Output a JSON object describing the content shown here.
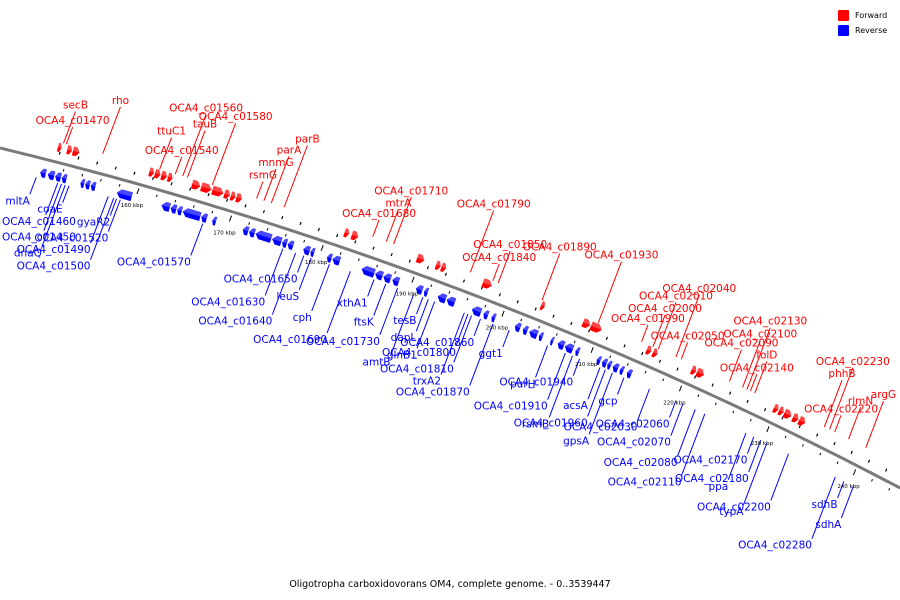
{
  "caption": "Oligotropha carboxidovorans OM4, complete genome. - 0..3539447",
  "legend": {
    "forward_label": "Forward",
    "reverse_label": "Reverse",
    "forward_color": "#ff0000",
    "reverse_color": "#0000ff"
  },
  "colors": {
    "forward": "#ff0000",
    "reverse": "#0000ff",
    "backbone": "#7a7a7a",
    "leader": "#0000ff",
    "leader_forward": "#ff0000"
  },
  "genome": {
    "name": "Oligotropha carboxidovorans OM4",
    "length_bp": 3539447,
    "view_start_kbp": 150,
    "view_end_kbp": 250
  },
  "ticks": [
    {
      "kbp": 160,
      "label": "160 kbp"
    },
    {
      "kbp": 170,
      "label": "170 kbp"
    },
    {
      "kbp": 180,
      "label": "180 kbp"
    },
    {
      "kbp": 190,
      "label": "190 kbp"
    },
    {
      "kbp": 200,
      "label": "200 kbp"
    },
    {
      "kbp": 210,
      "label": "210 kbp"
    },
    {
      "kbp": 220,
      "label": "220 kbp"
    },
    {
      "kbp": 230,
      "label": "230 kbp"
    },
    {
      "kbp": 240,
      "label": "240 kbp"
    }
  ],
  "forward_labels": [
    {
      "label": "OCA4_c01470",
      "kbp": 151.3
    },
    {
      "label": "secB",
      "kbp": 151.0
    },
    {
      "label": "rho",
      "kbp": 155.2
    },
    {
      "label": "OCA4_c01560",
      "kbp": 163.8
    },
    {
      "label": "OCA4_c01540",
      "kbp": 163.0
    },
    {
      "label": "ttuC1",
      "kbp": 161.3
    },
    {
      "label": "tauB",
      "kbp": 164.3
    },
    {
      "label": "OCA4_c01580",
      "kbp": 167.0
    },
    {
      "label": "rsmG",
      "kbp": 171.8
    },
    {
      "label": "mnmG",
      "kbp": 172.6
    },
    {
      "label": "parA",
      "kbp": 173.4
    },
    {
      "label": "parB",
      "kbp": 174.8
    },
    {
      "label": "OCA4_c01680",
      "kbp": 184.5
    },
    {
      "label": "mtrA",
      "kbp": 186.0
    },
    {
      "label": "OCA4_c01710",
      "kbp": 186.8
    },
    {
      "label": "OCA4_c01790",
      "kbp": 195.3
    },
    {
      "label": "OCA4_c01840",
      "kbp": 197.8
    },
    {
      "label": "OCA4_c01850",
      "kbp": 198.4
    },
    {
      "label": "OCA4_c01890",
      "kbp": 203.3
    },
    {
      "label": "OCA4_c01930",
      "kbp": 209.6
    },
    {
      "label": "OCA4_c01990",
      "kbp": 214.5
    },
    {
      "label": "OCA4_c02000",
      "kbp": 215.8
    },
    {
      "label": "OCA4_c02010",
      "kbp": 216.4
    },
    {
      "label": "OCA4_c02040",
      "kbp": 218.4
    },
    {
      "label": "OCA4_c02050",
      "kbp": 219.0
    },
    {
      "label": "OCA4_c02090",
      "kbp": 224.5
    },
    {
      "label": "OCA4_c02100",
      "kbp": 226.0
    },
    {
      "label": "OCA4_c02130",
      "kbp": 226.5
    },
    {
      "label": "OCA4_c02140",
      "kbp": 226.9
    },
    {
      "label": "folD",
      "kbp": 227.4
    },
    {
      "label": "phhB",
      "kbp": 235.4
    },
    {
      "label": "OCA4_c02230",
      "kbp": 236.0
    },
    {
      "label": "OCA4_c02220",
      "kbp": 236.6
    },
    {
      "label": "rlmN",
      "kbp": 238.2
    },
    {
      "label": "argG",
      "kbp": 240.2
    }
  ],
  "reverse_labels": [
    {
      "label": "mltA",
      "kbp": 149.6
    },
    {
      "label": "OCA4_c01460",
      "kbp": 151.9
    },
    {
      "label": "OCA4_c01450",
      "kbp": 152.3
    },
    {
      "label": "dnaQ",
      "kbp": 152.7
    },
    {
      "label": "coaE",
      "kbp": 153.1
    },
    {
      "label": "OCA4_c01520",
      "kbp": 158.6
    },
    {
      "label": "OCA4_c01490",
      "kbp": 157.3
    },
    {
      "label": "OCA4_c01500",
      "kbp": 157.9
    },
    {
      "label": "gyaR2",
      "kbp": 158.2
    },
    {
      "label": "OCA4_c01570",
      "kbp": 167.5
    },
    {
      "label": "OCA4_c01630",
      "kbp": 176.2
    },
    {
      "label": "OCA4_c01640",
      "kbp": 177.6
    },
    {
      "label": "OCA4_c01650",
      "kbp": 178.5
    },
    {
      "label": "leuS",
      "kbp": 179.3
    },
    {
      "label": "cph",
      "kbp": 181.3
    },
    {
      "label": "OCA4_c01690",
      "kbp": 183.6
    },
    {
      "label": "xthA1",
      "kbp": 186.2
    },
    {
      "label": "ftsK",
      "kbp": 187.5
    },
    {
      "label": "OCA4_c01730",
      "kbp": 188.8
    },
    {
      "label": "amtB",
      "kbp": 190.6
    },
    {
      "label": "tesB",
      "kbp": 191.6
    },
    {
      "label": "dapL",
      "kbp": 192.2
    },
    {
      "label": "glnB1",
      "kbp": 192.9
    },
    {
      "label": "trxA2",
      "kbp": 196.2
    },
    {
      "label": "OCA4_c01860",
      "kbp": 198.0
    },
    {
      "label": "OCA4_c01800",
      "kbp": 196.6
    },
    {
      "label": "OCA4_c01810",
      "kbp": 197.0
    },
    {
      "label": "OCA4_c01870",
      "kbp": 199.4
    },
    {
      "label": "ggt1",
      "kbp": 201.2
    },
    {
      "label": "purH",
      "kbp": 205.5
    },
    {
      "label": "OCA4_c01910",
      "kbp": 207.5
    },
    {
      "label": "rsmB",
      "kbp": 208.3
    },
    {
      "label": "OCA4_c01940",
      "kbp": 209.1
    },
    {
      "label": "acsA",
      "kbp": 211.4
    },
    {
      "label": "OCA4_c01960",
      "kbp": 212.0
    },
    {
      "label": "gpsA",
      "kbp": 212.8
    },
    {
      "label": "gcp",
      "kbp": 214.1
    },
    {
      "label": "OCA4_c02030",
      "kbp": 217.0
    },
    {
      "label": "OCA4_c02080",
      "kbp": 222.2
    },
    {
      "label": "OCA4_c02110",
      "kbp": 223.3
    },
    {
      "label": "OCA4_c02060",
      "kbp": 220.0
    },
    {
      "label": "OCA4_c02070",
      "kbp": 220.8
    },
    {
      "label": "ppa",
      "kbp": 228.0
    },
    {
      "label": "typA",
      "kbp": 230.4
    },
    {
      "label": "OCA4_c02170",
      "kbp": 228.9
    },
    {
      "label": "OCA4_c02180",
      "kbp": 229.7
    },
    {
      "label": "OCA4_c02200",
      "kbp": 232.9
    },
    {
      "label": "OCA4_c02280",
      "kbp": 238.3
    },
    {
      "label": "sdhB",
      "kbp": 239.3
    },
    {
      "label": "sdhA",
      "kbp": 240.4
    }
  ],
  "forward_genes": [
    [
      150.6,
      151.0
    ],
    [
      151.6,
      152.1
    ],
    [
      152.2,
      152.9
    ],
    [
      160.4,
      160.9
    ],
    [
      161.0,
      161.6
    ],
    [
      161.7,
      162.3
    ],
    [
      162.4,
      162.9
    ],
    [
      165.0,
      165.9
    ],
    [
      166.0,
      167.1
    ],
    [
      167.2,
      168.4
    ],
    [
      168.5,
      169.1
    ],
    [
      169.2,
      169.7
    ],
    [
      169.8,
      170.4
    ],
    [
      181.6,
      182.1
    ],
    [
      182.4,
      183.1
    ],
    [
      189.6,
      190.4
    ],
    [
      191.7,
      192.2
    ],
    [
      192.3,
      192.8
    ],
    [
      196.9,
      197.9
    ],
    [
      203.4,
      203.8
    ],
    [
      208.1,
      208.9
    ],
    [
      209.0,
      210.2
    ],
    [
      215.3,
      215.8
    ],
    [
      216.0,
      216.5
    ],
    [
      220.4,
      220.9
    ],
    [
      221.0,
      221.8
    ],
    [
      229.8,
      230.3
    ],
    [
      230.4,
      230.9
    ],
    [
      231.0,
      231.8
    ],
    [
      232.0,
      232.6
    ],
    [
      232.7,
      233.4
    ]
  ],
  "reverse_genes": [
    [
      149.8,
      150.4
    ],
    [
      150.6,
      151.3
    ],
    [
      151.4,
      152.0
    ],
    [
      152.1,
      152.6
    ],
    [
      154.1,
      154.5
    ],
    [
      154.6,
      155.1
    ],
    [
      155.2,
      155.7
    ],
    [
      158.0,
      159.6
    ],
    [
      162.8,
      163.7
    ],
    [
      163.8,
      164.4
    ],
    [
      164.5,
      165.0
    ],
    [
      165.1,
      167.0
    ],
    [
      167.1,
      167.7
    ],
    [
      168.3,
      168.7
    ],
    [
      171.6,
      172.2
    ],
    [
      172.3,
      172.9
    ],
    [
      173.0,
      174.7
    ],
    [
      174.8,
      175.8
    ],
    [
      175.9,
      176.4
    ],
    [
      176.5,
      177.1
    ],
    [
      178.2,
      178.9
    ],
    [
      179.0,
      179.4
    ],
    [
      180.8,
      181.3
    ],
    [
      181.4,
      182.2
    ],
    [
      184.6,
      186.0
    ],
    [
      186.1,
      186.9
    ],
    [
      187.0,
      187.8
    ],
    [
      188.0,
      188.7
    ],
    [
      190.6,
      191.3
    ],
    [
      191.5,
      191.9
    ],
    [
      193.0,
      193.9
    ],
    [
      194.0,
      194.9
    ],
    [
      196.8,
      197.8
    ],
    [
      198.1,
      198.6
    ],
    [
      199.0,
      199.4
    ],
    [
      201.6,
      202.2
    ],
    [
      202.5,
      203.0
    ],
    [
      203.2,
      204.1
    ],
    [
      204.3,
      204.7
    ],
    [
      205.6,
      205.9
    ],
    [
      206.4,
      207.1
    ],
    [
      207.2,
      208.1
    ],
    [
      208.4,
      208.8
    ],
    [
      210.8,
      211.2
    ],
    [
      211.4,
      211.9
    ],
    [
      212.0,
      212.4
    ],
    [
      212.6,
      213.2
    ],
    [
      213.4,
      213.8
    ],
    [
      214.2,
      214.7
    ]
  ]
}
